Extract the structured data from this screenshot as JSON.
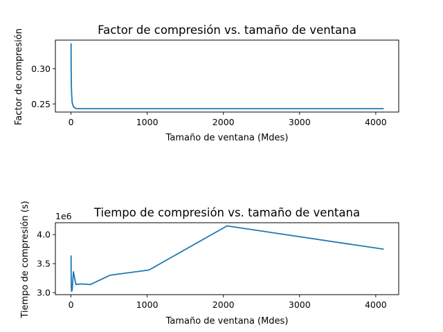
{
  "chart_data": [
    {
      "type": "line",
      "title": "Factor de compresión vs. tamaño de ventana",
      "xlabel": "Tamaño de ventana (Mdes)",
      "ylabel": "Factor de compresión",
      "xlim": [
        -205,
        4301
      ],
      "ylim": [
        0.2385,
        0.3405
      ],
      "xticks": [
        0,
        1000,
        2000,
        3000,
        4000
      ],
      "xtick_labels": [
        "0",
        "1000",
        "2000",
        "3000",
        "4000"
      ],
      "yticks": [
        0.25,
        0.3
      ],
      "ytick_labels": [
        "0.25",
        "0.30"
      ],
      "grid": false,
      "color": "#1f77b4",
      "series": [
        {
          "x": [
            1,
            2,
            4,
            8,
            16,
            32,
            64,
            128,
            256,
            512,
            1024,
            2048,
            4096
          ],
          "y": [
            0.335,
            0.305,
            0.28,
            0.265,
            0.252,
            0.246,
            0.2435,
            0.2433,
            0.2433,
            0.2433,
            0.2433,
            0.2433,
            0.2433
          ]
        }
      ]
    },
    {
      "type": "line",
      "title": "Tiempo de compresión vs. tamaño de ventana",
      "xlabel": "Tamaño de ventana (Mdes)",
      "ylabel": "Tiempo de compresión (s)",
      "offset_label": "1e6",
      "xlim": [
        -205,
        4301
      ],
      "ylim": [
        2.965,
        4.205
      ],
      "xticks": [
        0,
        1000,
        2000,
        3000,
        4000
      ],
      "xtick_labels": [
        "0",
        "1000",
        "2000",
        "3000",
        "4000"
      ],
      "yticks": [
        3.0,
        3.5,
        4.0
      ],
      "ytick_labels": [
        "3.0",
        "3.5",
        "4.0"
      ],
      "grid": false,
      "color": "#1f77b4",
      "series": [
        {
          "x": [
            1,
            2,
            4,
            8,
            16,
            32,
            64,
            128,
            256,
            512,
            1024,
            2048,
            4096
          ],
          "y": [
            3.63,
            3.35,
            3.1,
            3.02,
            3.05,
            3.36,
            3.14,
            3.15,
            3.14,
            3.3,
            3.39,
            4.15,
            3.75
          ]
        }
      ]
    }
  ]
}
